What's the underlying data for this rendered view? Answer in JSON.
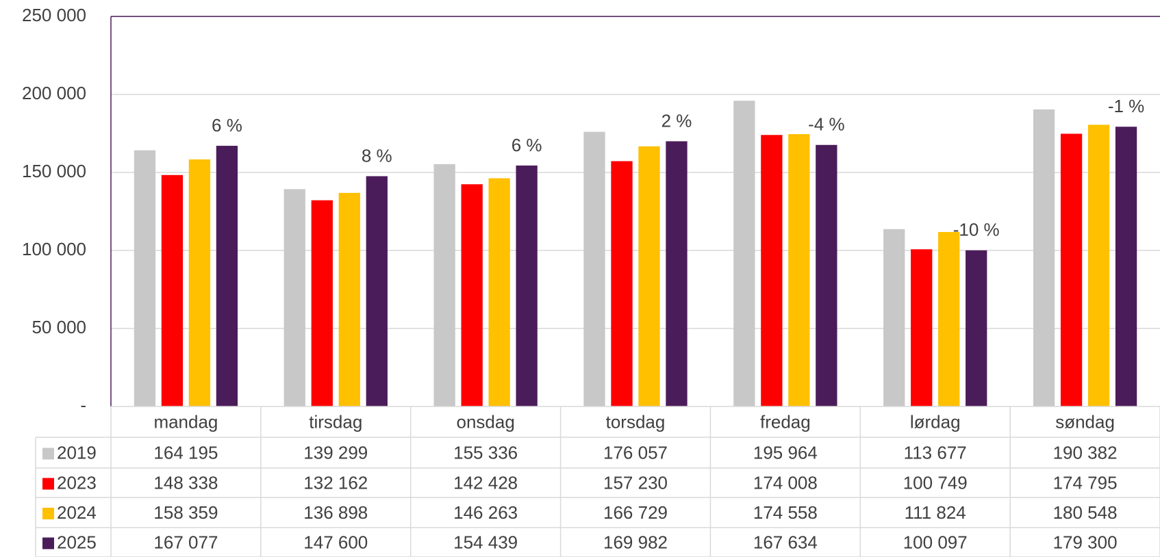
{
  "chart_data": {
    "type": "bar",
    "categories": [
      "mandag",
      "tirsdag",
      "onsdag",
      "torsdag",
      "fredag",
      "lørdag",
      "søndag"
    ],
    "series": [
      {
        "name": "2019",
        "color": "#c8c8c8",
        "values": [
          164195,
          139299,
          155336,
          176057,
          195964,
          113677,
          190382
        ],
        "value_labels": [
          "164 195",
          "139 299",
          "155 336",
          "176 057",
          "195 964",
          "113 677",
          "190 382"
        ]
      },
      {
        "name": "2023",
        "color": "#ff0000",
        "values": [
          148338,
          132162,
          142428,
          157230,
          174008,
          100749,
          174795
        ],
        "value_labels": [
          "148 338",
          "132 162",
          "142 428",
          "157 230",
          "174 008",
          "100 749",
          "174 795"
        ]
      },
      {
        "name": "2024",
        "color": "#ffc000",
        "values": [
          158359,
          136898,
          146263,
          166729,
          174558,
          111824,
          180548
        ],
        "value_labels": [
          "158 359",
          "136 898",
          "146 263",
          "166 729",
          "174 558",
          "111 824",
          "180 548"
        ]
      },
      {
        "name": "2025",
        "color": "#4b1c5a",
        "values": [
          167077,
          147600,
          154439,
          169982,
          167634,
          100097,
          179300
        ],
        "value_labels": [
          "167 077",
          "147 600",
          "154 439",
          "169 982",
          "167 634",
          "100 097",
          "179 300"
        ]
      }
    ],
    "change_labels": [
      "6 %",
      "8 %",
      "6 %",
      "2 %",
      "-4 %",
      "-10 %",
      "-1 %"
    ],
    "ylim": [
      0,
      250000
    ],
    "yticks": [
      {
        "value": 0,
        "label": "-"
      },
      {
        "value": 50000,
        "label": "50 000"
      },
      {
        "value": 100000,
        "label": "100 000"
      },
      {
        "value": 150000,
        "label": "150 000"
      },
      {
        "value": 200000,
        "label": "200 000"
      },
      {
        "value": 250000,
        "label": "250 000"
      }
    ],
    "grid": true
  }
}
